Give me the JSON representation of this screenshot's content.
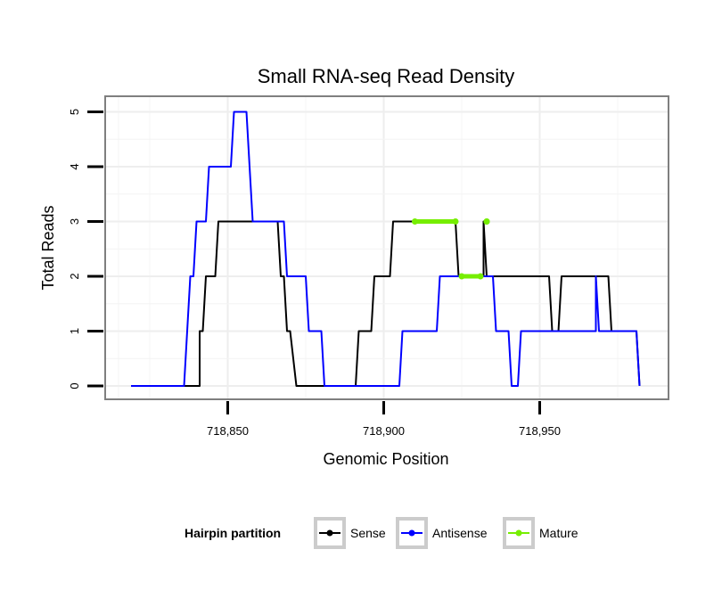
{
  "chart_data": {
    "type": "line",
    "title": "Small RNA-seq Read Density",
    "xlabel": "Genomic Position",
    "ylabel": "Total Reads",
    "xlim": [
      718815,
      718982
    ],
    "ylim": [
      0,
      5
    ],
    "x_ticks": [
      718850,
      718900,
      718950
    ],
    "x_tick_labels": [
      "718,850",
      "718,900",
      "718,950"
    ],
    "y_ticks": [
      0,
      1,
      2,
      3,
      4,
      5
    ],
    "y_tick_labels": [
      "0",
      "1",
      "2",
      "3",
      "4",
      "5"
    ],
    "grid": true,
    "legend": {
      "title": "Hairpin partition",
      "position": "bottom",
      "entries": [
        "Sense",
        "Antisense",
        "Mature"
      ]
    },
    "series": [
      {
        "name": "Sense",
        "color": "#000000",
        "x": [
          718819,
          718841,
          718841,
          718842,
          718843,
          718844,
          718845,
          718846,
          718847,
          718866,
          718867,
          718868,
          718869,
          718870,
          718872,
          718891,
          718892,
          718896,
          718897,
          718902,
          718903,
          718907,
          718908,
          718923,
          718924,
          718932,
          718932,
          718933,
          718935,
          718953,
          718954,
          718956,
          718957,
          718960,
          718961,
          718972,
          718973,
          718981,
          718981,
          718982
        ],
        "values": [
          0,
          0,
          1,
          1,
          2,
          2,
          2,
          2,
          3,
          3,
          2,
          2,
          1,
          1,
          0,
          0,
          1,
          1,
          2,
          2,
          3,
          3,
          3,
          3,
          2,
          2,
          3,
          2,
          2,
          2,
          1,
          1,
          2,
          2,
          2,
          2,
          1,
          1,
          1,
          0
        ]
      },
      {
        "name": "Antisense",
        "color": "#0000ff",
        "x": [
          718819,
          718836,
          718837,
          718838,
          718839,
          718840,
          718841,
          718843,
          718844,
          718851,
          718852,
          718853,
          718854,
          718856,
          718857,
          718858,
          718859,
          718868,
          718869,
          718875,
          718876,
          718880,
          718881,
          718905,
          718906,
          718909,
          718910,
          718917,
          718918,
          718935,
          718936,
          718940,
          718941,
          718943,
          718944,
          718968,
          718968,
          718969,
          718970,
          718981,
          718981,
          718982
        ],
        "values": [
          0,
          0,
          1,
          2,
          2,
          3,
          3,
          3,
          4,
          4,
          5,
          5,
          5,
          5,
          4,
          3,
          3,
          3,
          2,
          2,
          1,
          1,
          0,
          0,
          1,
          1,
          1,
          1,
          2,
          2,
          1,
          1,
          0,
          0,
          1,
          1,
          2,
          1,
          1,
          1,
          1,
          0
        ]
      },
      {
        "name": "Mature",
        "color": "#76ee00",
        "segments": [
          {
            "x": [
              718910,
              718923
            ],
            "values": [
              3,
              3
            ]
          },
          {
            "x": [
              718925,
              718931
            ],
            "values": [
              2,
              2
            ]
          },
          {
            "x": [
              718933,
              718933
            ],
            "values": [
              3,
              3
            ]
          }
        ]
      }
    ]
  }
}
